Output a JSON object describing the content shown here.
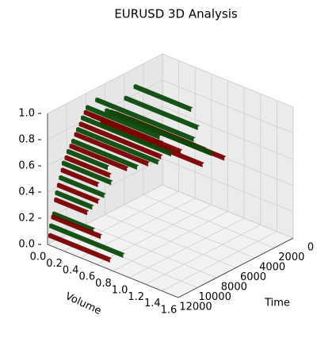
{
  "chart_data": {
    "type": "bar3d",
    "title": "EURUSD 3D Analysis",
    "xlabel": "Time",
    "ylabel": "Volume",
    "xlim": [
      0,
      12000
    ],
    "xticks": [
      0,
      2000,
      4000,
      6000,
      8000,
      10000,
      12000
    ],
    "ylim": [
      0,
      1.6
    ],
    "yticks": [
      {
        "value": 0,
        "label": "0.0"
      },
      {
        "value": 0.2,
        "label": "0.2"
      },
      {
        "value": 0.4,
        "label": "0.4"
      },
      {
        "value": 0.6,
        "label": "0.6"
      },
      {
        "value": 0.8,
        "label": "0.8"
      },
      {
        "value": 1.0,
        "label": "1.0"
      },
      {
        "value": 1.2,
        "label": "1.2"
      },
      {
        "value": 1.4,
        "label": "1.4"
      },
      {
        "value": 1.6,
        "label": "1.6"
      }
    ],
    "zlim": [
      0,
      1
    ],
    "zticks": [
      {
        "value": 0,
        "label": "0.0"
      },
      {
        "value": 0.2,
        "label": "0.2"
      },
      {
        "value": 0.4,
        "label": "0.4"
      },
      {
        "value": 0.6,
        "label": "0.6"
      },
      {
        "value": 0.8,
        "label": "0.8"
      },
      {
        "value": 1.0,
        "label": "1.0"
      }
    ],
    "series": [
      {
        "color": "#0b4a0b",
        "time": [
          11800,
          11500,
          11200,
          10800,
          10500,
          10000,
          9500,
          9000,
          8500,
          8000,
          7000,
          6000,
          5000,
          4000,
          3000
        ],
        "price": [
          0.12,
          0.2,
          0.35,
          0.45,
          0.55,
          0.62,
          0.68,
          0.75,
          0.82,
          0.88,
          0.9,
          0.78,
          0.72,
          0.8,
          0.85
        ],
        "volume": [
          0.9,
          0.5,
          0.45,
          0.55,
          0.6,
          0.5,
          0.8,
          1.0,
          1.1,
          0.9,
          1.2,
          1.3,
          1.1,
          0.9,
          0.7
        ]
      },
      {
        "color": "#7a0000",
        "time": [
          11900,
          11600,
          11300,
          11000,
          10600,
          10200,
          9700,
          9200,
          8700,
          8200,
          7500,
          6500,
          5500,
          4500,
          3500
        ],
        "price": [
          0.05,
          0.18,
          0.3,
          0.4,
          0.5,
          0.58,
          0.65,
          0.72,
          0.78,
          0.85,
          0.8,
          0.7,
          0.75,
          0.68,
          0.62
        ],
        "volume": [
          0.75,
          0.6,
          0.4,
          0.5,
          0.45,
          0.55,
          0.7,
          0.9,
          1.0,
          0.95,
          1.1,
          1.25,
          1.4,
          1.0,
          0.8
        ]
      }
    ]
  }
}
